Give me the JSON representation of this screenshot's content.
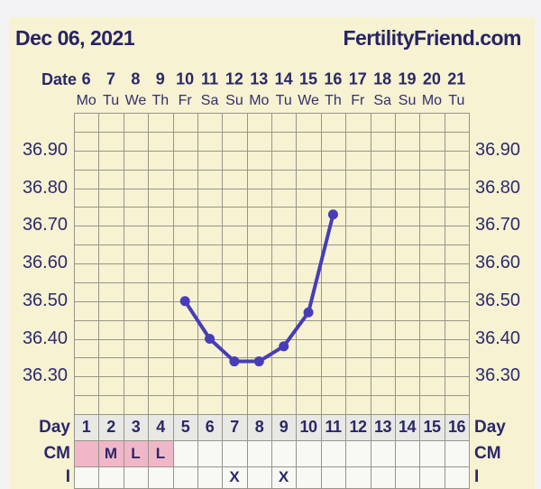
{
  "header": {
    "date_title": "Dec 06, 2021",
    "site_name": "FertilityFriend.com"
  },
  "date_axis": {
    "label": "Date",
    "dates": [
      "6",
      "7",
      "8",
      "9",
      "10",
      "11",
      "12",
      "13",
      "14",
      "15",
      "16",
      "17",
      "18",
      "19",
      "20",
      "21"
    ],
    "weekdays": [
      "Mo",
      "Tu",
      "We",
      "Th",
      "Fr",
      "Sa",
      "Su",
      "Mo",
      "Tu",
      "We",
      "Th",
      "Fr",
      "Sa",
      "Su",
      "Mo",
      "Tu"
    ]
  },
  "chart_data": {
    "type": "line",
    "series": [
      {
        "name": "basal-body-temperature-celsius",
        "x_cycle_days": [
          5,
          6,
          7,
          8,
          9,
          10,
          11
        ],
        "values": [
          36.5,
          36.4,
          36.34,
          36.34,
          36.38,
          36.47,
          36.73
        ]
      }
    ],
    "x_columns": 16,
    "y_ticks_left": [
      "36.90",
      "36.80",
      "36.70",
      "36.60",
      "36.50",
      "36.40",
      "36.30"
    ],
    "y_ticks_right": [
      "36.90",
      "36.80",
      "36.70",
      "36.60",
      "36.50",
      "36.40",
      "36.30"
    ],
    "ylim": [
      36.2,
      37.0
    ],
    "y_grid_step": 0.05,
    "grid": true,
    "legend": "none"
  },
  "bottom_rows": {
    "day": {
      "label": "Day",
      "cells": [
        "1",
        "2",
        "3",
        "4",
        "5",
        "6",
        "7",
        "8",
        "9",
        "10",
        "11",
        "12",
        "13",
        "14",
        "15",
        "16"
      ]
    },
    "cm": {
      "label": "CM",
      "cells": [
        "",
        "M",
        "L",
        "L",
        "",
        "",
        "",
        "",
        "",
        "",
        "",
        "",
        "",
        "",
        "",
        ""
      ],
      "highlighted": [
        1,
        1,
        1,
        1,
        0,
        0,
        0,
        0,
        0,
        0,
        0,
        0,
        0,
        0,
        0,
        0
      ]
    },
    "intercourse": {
      "label": "I",
      "cells": [
        "",
        "",
        "",
        "",
        "",
        "",
        "X",
        "",
        "X",
        "",
        "",
        "",
        "",
        "",
        "",
        ""
      ]
    }
  },
  "colors": {
    "page_background": "#f3f3f5",
    "panel_background": "#f6f2d2",
    "text_navy": "#2b2768",
    "grid_line": "#97958b",
    "temperature_line": "#473db8",
    "day_cell_background": "#e8e8e4",
    "cm_highlight_pink": "#f0b7c8",
    "plain_cell_background": "#f8f8f4"
  }
}
